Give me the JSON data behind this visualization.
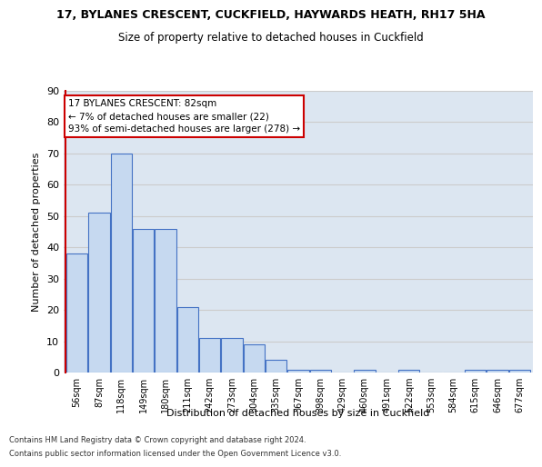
{
  "title1": "17, BYLANES CRESCENT, CUCKFIELD, HAYWARDS HEATH, RH17 5HA",
  "title2": "Size of property relative to detached houses in Cuckfield",
  "xlabel": "Distribution of detached houses by size in Cuckfield",
  "ylabel": "Number of detached properties",
  "bin_labels": [
    "56sqm",
    "87sqm",
    "118sqm",
    "149sqm",
    "180sqm",
    "211sqm",
    "242sqm",
    "273sqm",
    "304sqm",
    "335sqm",
    "367sqm",
    "398sqm",
    "429sqm",
    "460sqm",
    "491sqm",
    "522sqm",
    "553sqm",
    "584sqm",
    "615sqm",
    "646sqm",
    "677sqm"
  ],
  "bar_heights": [
    38,
    51,
    70,
    46,
    46,
    21,
    11,
    11,
    9,
    4,
    1,
    1,
    0,
    1,
    0,
    1,
    0,
    0,
    1,
    1,
    1
  ],
  "bar_color": "#c6d9f0",
  "bar_edge_color": "#4472c4",
  "highlight_line_color": "#cc0000",
  "annotation_text": "17 BYLANES CRESCENT: 82sqm\n← 7% of detached houses are smaller (22)\n93% of semi-detached houses are larger (278) →",
  "annotation_box_color": "#cc0000",
  "ylim": [
    0,
    90
  ],
  "yticks": [
    0,
    10,
    20,
    30,
    40,
    50,
    60,
    70,
    80,
    90
  ],
  "grid_color": "#cccccc",
  "bg_color": "#dce6f1",
  "footer1": "Contains HM Land Registry data © Crown copyright and database right 2024.",
  "footer2": "Contains public sector information licensed under the Open Government Licence v3.0."
}
